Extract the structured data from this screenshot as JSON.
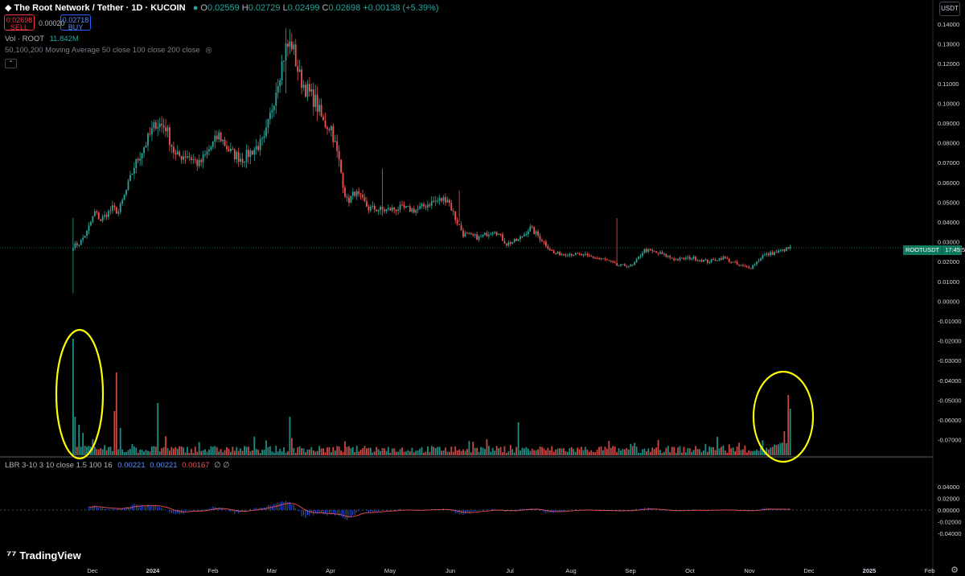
{
  "header": {
    "symbol_title": "The Root Network / Tether · 1D · KUCOIN",
    "ohlc": {
      "o": "0.02559",
      "h": "0.02729",
      "l": "0.02499",
      "c": "0.02698",
      "chg": "+0.00138 (+5.39%)"
    },
    "sell_price": "0.02698",
    "sell_label": "SELL",
    "buy_price": "0.02718",
    "buy_label": "BUY",
    "spread": "0.00020",
    "vol_label": "Vol · ROOT",
    "vol_value": "11.842M",
    "ma_label": "50,100,200 Moving Average 50 close 100 close 200 close",
    "lbr_label": "LBR 3-10 3 10 close 1.5 100 16",
    "lbr_v1": "0.00221",
    "lbr_v2": "0.00221",
    "lbr_v3": "0.00167",
    "lbr_v4": "∅ ∅",
    "currency": "USDT",
    "brand": "TradingView"
  },
  "last_price_tag": {
    "symbol": "ROOTUSDT",
    "countdown": "17:45:56"
  },
  "colors": {
    "up": "#26a69a",
    "down": "#ef5350",
    "lbr_hist": "#2962ff",
    "lbr_signal": "#ef5350",
    "highlight": "#ffff00",
    "grid_line": "#2a2e39"
  },
  "chart_data": {
    "type": "candlestick",
    "ylim": [
      -0.078,
      0.144
    ],
    "y_ticks": [
      "0.14000",
      "0.13000",
      "0.12000",
      "0.11000",
      "0.10000",
      "0.09000",
      "0.08000",
      "0.07000",
      "0.06000",
      "0.05000",
      "0.04000",
      "0.03000",
      "0.02000",
      "0.01000",
      "0.00000",
      "-0.01000",
      "-0.02000",
      "-0.03000",
      "-0.04000",
      "-0.05000",
      "-0.06000",
      "-0.07000"
    ],
    "lbr_ticks": [
      "0.04000",
      "0.02000",
      "0.00000",
      "-0.02000",
      "-0.04000"
    ],
    "x_ticks": [
      "Dec",
      "2024",
      "Feb",
      "Mar",
      "Apr",
      "May",
      "Jun",
      "Jul",
      "Aug",
      "Sep",
      "Oct",
      "Nov",
      "Dec",
      "2025",
      "Feb"
    ],
    "price_anchors": [
      [
        0,
        0.028
      ],
      [
        3,
        0.029
      ],
      [
        7,
        0.035
      ],
      [
        11,
        0.045
      ],
      [
        14,
        0.041
      ],
      [
        20,
        0.047
      ],
      [
        23,
        0.045
      ],
      [
        27,
        0.056
      ],
      [
        31,
        0.068
      ],
      [
        36,
        0.078
      ],
      [
        42,
        0.09
      ],
      [
        47,
        0.088
      ],
      [
        52,
        0.073
      ],
      [
        58,
        0.074
      ],
      [
        64,
        0.069
      ],
      [
        68,
        0.075
      ],
      [
        74,
        0.084
      ],
      [
        80,
        0.075
      ],
      [
        86,
        0.072
      ],
      [
        92,
        0.077
      ],
      [
        97,
        0.081
      ],
      [
        101,
        0.098
      ],
      [
        104,
        0.112
      ],
      [
        108,
        0.128
      ],
      [
        111,
        0.13
      ],
      [
        115,
        0.113
      ],
      [
        119,
        0.106
      ],
      [
        123,
        0.101
      ],
      [
        127,
        0.09
      ],
      [
        131,
        0.088
      ],
      [
        135,
        0.07
      ],
      [
        139,
        0.05
      ],
      [
        143,
        0.055
      ],
      [
        150,
        0.047
      ],
      [
        158,
        0.046
      ],
      [
        166,
        0.047
      ],
      [
        174,
        0.046
      ],
      [
        182,
        0.05
      ],
      [
        190,
        0.052
      ],
      [
        194,
        0.042
      ],
      [
        198,
        0.034
      ],
      [
        206,
        0.032
      ],
      [
        214,
        0.036
      ],
      [
        220,
        0.029
      ],
      [
        226,
        0.031
      ],
      [
        232,
        0.037
      ],
      [
        238,
        0.031
      ],
      [
        244,
        0.024
      ],
      [
        252,
        0.024
      ],
      [
        260,
        0.023
      ],
      [
        270,
        0.021
      ],
      [
        276,
        0.018
      ],
      [
        284,
        0.018
      ],
      [
        290,
        0.026
      ],
      [
        298,
        0.024
      ],
      [
        306,
        0.021
      ],
      [
        314,
        0.022
      ],
      [
        322,
        0.02
      ],
      [
        330,
        0.022
      ],
      [
        338,
        0.018
      ],
      [
        344,
        0.017
      ],
      [
        350,
        0.023
      ],
      [
        358,
        0.025
      ],
      [
        364,
        0.027
      ]
    ],
    "wick_spikes": [
      [
        0,
        0.042,
        0.004
      ],
      [
        108,
        0.138,
        0.105
      ],
      [
        157,
        0.067,
        0.043
      ],
      [
        196,
        0.056,
        0.04
      ],
      [
        276,
        0.042,
        0.019
      ]
    ],
    "volume_profile": "low baseline with tall spikes at start (Dec 2023), late Dec 2023, early Jan 2024 and mid-Nov 2024",
    "lbr_series": "oscillator histogram around zero with red signal line; peaks near Jan and Mar 2024",
    "annotations": [
      "yellow ellipse around Dec 2023 volume spike",
      "yellow ellipse around mid-Nov 2024 volume spike"
    ]
  }
}
